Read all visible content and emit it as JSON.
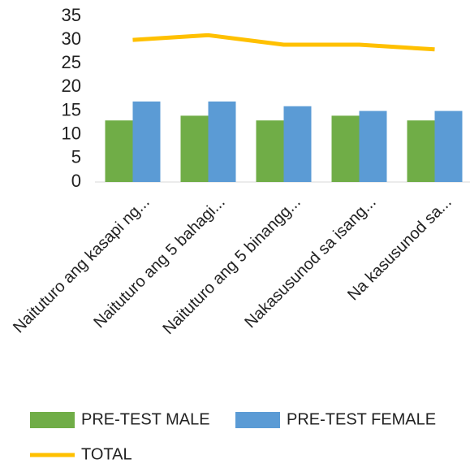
{
  "chart_data": {
    "type": "bar",
    "categories": [
      "Naituturo ang kasapi ng...",
      "Naituturo ang 5 bahagi...",
      "Naituturo ang 5 binangg...",
      "Nakasusunod sa isang...",
      "Na kasusunod sa..."
    ],
    "series": [
      {
        "name": "PRE-TEST MALE",
        "type": "bar",
        "color": "#70ad47",
        "values": [
          13,
          14,
          13,
          14,
          13
        ]
      },
      {
        "name": "PRE-TEST FEMALE",
        "type": "bar",
        "color": "#5b9bd5",
        "values": [
          17,
          17,
          16,
          15,
          15
        ]
      },
      {
        "name": "TOTAL",
        "type": "line",
        "color": "#ffc000",
        "values": [
          30,
          31,
          29,
          29,
          28
        ]
      }
    ],
    "ylim": [
      0,
      35
    ],
    "yticks": [
      0,
      5,
      10,
      15,
      20,
      25,
      30,
      35
    ],
    "grid": false,
    "legend": "bottom"
  }
}
